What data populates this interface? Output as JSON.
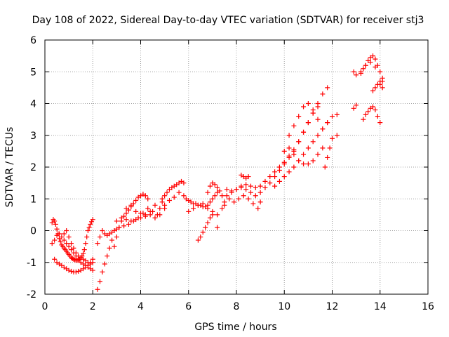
{
  "chart_data": {
    "type": "scatter",
    "title": "Day 108 of 2022, Sidereal Day-to-day VTEC variation (SDTVAR) for receiver stj3",
    "xlabel": "GPS time / hours",
    "ylabel": "SDTVAR / TECUs",
    "xlim": [
      0,
      16
    ],
    "ylim": [
      -2,
      6
    ],
    "xticks": [
      "0",
      "2",
      "4",
      "6",
      "8",
      "10",
      "12",
      "14",
      "16"
    ],
    "yticks": [
      "-2",
      "-1",
      "0",
      "1",
      "2",
      "3",
      "4",
      "5",
      "6"
    ],
    "grid": true,
    "marker": "+",
    "color": "#ff0000",
    "series": [
      {
        "x": [
          0.3,
          0.35,
          0.4,
          0.45,
          0.5,
          0.55,
          0.6,
          0.65,
          0.7,
          0.75,
          0.8,
          0.85,
          0.9,
          0.95,
          1.0,
          1.05,
          1.1,
          1.15,
          1.2,
          1.25,
          1.3,
          1.35,
          1.4,
          1.45,
          1.5,
          1.55,
          1.6,
          1.65,
          1.7,
          1.75,
          1.8,
          1.85,
          1.9,
          1.95,
          2.0,
          0.3,
          0.4,
          0.5,
          0.6,
          0.7,
          0.8,
          0.9,
          1.0,
          1.1,
          1.2,
          1.3,
          1.4,
          1.5,
          1.6,
          1.7,
          1.8,
          1.9,
          2.0,
          0.4,
          0.5,
          0.6,
          0.7,
          0.8,
          0.9,
          1.0,
          1.1,
          1.2,
          1.3,
          1.4,
          1.5,
          1.6,
          1.7,
          1.8,
          1.9,
          2.0,
          0.8,
          0.9,
          1.0,
          1.1,
          1.2,
          1.3,
          1.4,
          1.5,
          1.6,
          1.7,
          1.8,
          1.9,
          2.0,
          2.2,
          2.3,
          2.4,
          2.5,
          2.6,
          2.7,
          2.8,
          2.2,
          2.3,
          2.4,
          2.5,
          2.6,
          2.7,
          2.8,
          2.9,
          3.0,
          2.9,
          3.0,
          3.1,
          3.2,
          3.3,
          3.4,
          3.5,
          3.6,
          3.7,
          3.8,
          3.9,
          4.0,
          4.1,
          4.2,
          4.3,
          3.0,
          3.2,
          3.4,
          3.6,
          3.8,
          4.0,
          4.2,
          4.4,
          4.6,
          4.8,
          5.0,
          3.1,
          3.3,
          3.5,
          3.7,
          3.9,
          4.1,
          4.3,
          4.5,
          4.7,
          4.9,
          3.4,
          3.6,
          3.8,
          4.0,
          4.2,
          4.4,
          4.6,
          4.8,
          4.9,
          5.0,
          5.1,
          5.2,
          5.3,
          5.4,
          5.5,
          5.6,
          5.7,
          5.8,
          5.0,
          5.2,
          5.4,
          5.6,
          5.8,
          5.9,
          6.0,
          6.1,
          6.2,
          6.3,
          6.4,
          6.5,
          6.6,
          6.7,
          6.8,
          6.9,
          7.0,
          7.1,
          7.2,
          6.0,
          6.2,
          6.4,
          6.6,
          6.8,
          7.0,
          7.2,
          7.4,
          6.4,
          6.5,
          6.6,
          6.7,
          6.8,
          6.9,
          7.0,
          6.8,
          6.9,
          7.0,
          7.1,
          7.2,
          7.3,
          7.4,
          7.5,
          7.2,
          7.5,
          7.6,
          7.8,
          8.0,
          8.2,
          8.4,
          8.6,
          8.8,
          9.0,
          7.7,
          7.9,
          8.1,
          8.3,
          8.5,
          8.7,
          8.9,
          7.6,
          7.8,
          8.0,
          8.2,
          8.4,
          8.6,
          8.8,
          8.2,
          8.3,
          8.4,
          8.5,
          9.0,
          9.2,
          9.4,
          9.6,
          9.8,
          10.0,
          10.2,
          10.4,
          10.6,
          10.8,
          11.0,
          11.2,
          11.4,
          9.0,
          9.2,
          9.4,
          9.6,
          9.8,
          10.0,
          10.2,
          10.4,
          10.6,
          10.8,
          11.0,
          11.2,
          11.4,
          11.6,
          11.8,
          9.6,
          9.8,
          10.0,
          10.2,
          10.4,
          10.6,
          10.8,
          11.0,
          11.2,
          11.4,
          11.6,
          11.8,
          10.0,
          10.2,
          10.4,
          10.6,
          10.8,
          11.0,
          11.2,
          11.4,
          11.6,
          10.2,
          10.4,
          10.6,
          10.8,
          11.0,
          11.2,
          11.4,
          11.6,
          11.8,
          12.0,
          12.2,
          12.0,
          12.2,
          11.7,
          11.8,
          11.9,
          12.9,
          13.0,
          12.9,
          13.0,
          13.2,
          13.3,
          13.4,
          13.5,
          13.6,
          13.7,
          13.8,
          13.9,
          14.0,
          14.1,
          13.2,
          13.4,
          13.6,
          13.8,
          14.0,
          14.1,
          13.7,
          13.8,
          13.9,
          14.0,
          14.1,
          13.3,
          13.4,
          13.5,
          13.6,
          13.7,
          13.8,
          13.9,
          14.0
        ],
        "y": [
          0.25,
          0.35,
          0.3,
          0.2,
          0.05,
          -0.1,
          -0.25,
          -0.35,
          -0.45,
          -0.5,
          -0.55,
          -0.6,
          -0.65,
          -0.7,
          -0.75,
          -0.8,
          -0.85,
          -0.88,
          -0.9,
          -0.92,
          -0.93,
          -0.93,
          -0.92,
          -0.9,
          -0.85,
          -0.8,
          -0.72,
          -0.6,
          -0.4,
          -0.2,
          0.0,
          0.1,
          0.2,
          0.28,
          0.35,
          -0.4,
          -0.3,
          -0.15,
          -0.1,
          -0.2,
          -0.3,
          -0.4,
          -0.5,
          -0.6,
          -0.7,
          -0.8,
          -0.9,
          -1.0,
          -1.05,
          -1.1,
          -1.15,
          -1.2,
          -1.25,
          -0.9,
          -1.0,
          -1.05,
          -1.1,
          -1.15,
          -1.2,
          -1.25,
          -1.28,
          -1.3,
          -1.3,
          -1.28,
          -1.25,
          -1.2,
          -1.15,
          -1.1,
          -1.05,
          -1.0,
          -0.1,
          0.0,
          -0.2,
          -0.4,
          -0.55,
          -0.7,
          -0.8,
          -0.85,
          -0.9,
          -0.95,
          -1.0,
          -1.0,
          -0.9,
          -1.85,
          -1.6,
          -1.3,
          -1.05,
          -0.8,
          -0.55,
          -0.3,
          -0.4,
          -0.2,
          0.0,
          -0.1,
          -0.15,
          -0.1,
          -0.05,
          0.0,
          0.05,
          -0.5,
          -0.2,
          0.1,
          0.3,
          0.45,
          0.55,
          0.65,
          0.75,
          0.85,
          0.95,
          1.05,
          1.1,
          1.15,
          1.1,
          1.0,
          0.3,
          0.4,
          0.35,
          0.3,
          0.35,
          0.4,
          0.45,
          0.5,
          0.4,
          0.5,
          0.7,
          0.1,
          0.15,
          0.2,
          0.3,
          0.4,
          0.55,
          0.7,
          0.6,
          0.5,
          0.9,
          0.7,
          0.8,
          0.6,
          0.55,
          0.5,
          0.6,
          0.8,
          0.7,
          1.0,
          1.1,
          1.2,
          1.3,
          1.35,
          1.4,
          1.45,
          1.5,
          1.55,
          1.5,
          0.8,
          0.95,
          1.05,
          1.2,
          1.1,
          1.0,
          0.95,
          0.9,
          0.85,
          0.85,
          0.8,
          0.8,
          0.75,
          0.75,
          0.8,
          0.9,
          1.0,
          1.1,
          1.2,
          0.6,
          0.7,
          0.8,
          0.85,
          0.7,
          0.6,
          0.5,
          0.7,
          -0.3,
          -0.2,
          -0.05,
          0.1,
          0.25,
          0.4,
          0.5,
          1.2,
          1.4,
          1.5,
          1.45,
          1.35,
          1.25,
          1.1,
          0.9,
          0.1,
          0.8,
          1.1,
          1.2,
          1.3,
          1.35,
          1.3,
          1.2,
          1.1,
          0.9,
          1.0,
          0.9,
          1.0,
          1.1,
          1.0,
          0.85,
          0.7,
          1.3,
          1.25,
          1.3,
          1.4,
          1.45,
          1.4,
          1.35,
          1.75,
          1.7,
          1.65,
          1.7,
          1.2,
          1.35,
          1.5,
          1.7,
          1.9,
          2.1,
          2.3,
          2.5,
          2.8,
          3.1,
          3.4,
          3.7,
          3.9,
          1.4,
          1.55,
          1.7,
          1.85,
          2.0,
          2.15,
          2.35,
          2.55,
          2.8,
          3.1,
          3.4,
          3.7,
          4.0,
          4.3,
          4.5,
          1.4,
          1.55,
          1.7,
          1.85,
          2.0,
          2.2,
          2.4,
          2.6,
          2.8,
          3.0,
          3.2,
          3.4,
          2.5,
          2.6,
          2.4,
          2.2,
          2.1,
          2.1,
          2.2,
          2.4,
          2.6,
          3.0,
          3.3,
          3.6,
          3.9,
          4.0,
          3.8,
          3.5,
          3.2,
          3.4,
          3.6,
          3.65,
          2.9,
          3.0,
          2.0,
          2.3,
          2.6,
          5.0,
          4.9,
          3.85,
          3.95,
          4.95,
          5.1,
          5.2,
          5.35,
          5.45,
          5.5,
          5.4,
          5.2,
          5.0,
          4.8,
          5.0,
          5.2,
          5.3,
          5.15,
          4.6,
          4.5,
          4.4,
          4.5,
          4.6,
          4.7,
          4.7,
          3.5,
          3.65,
          3.75,
          3.85,
          3.9,
          3.8,
          3.6,
          3.4
        ]
      }
    ]
  }
}
